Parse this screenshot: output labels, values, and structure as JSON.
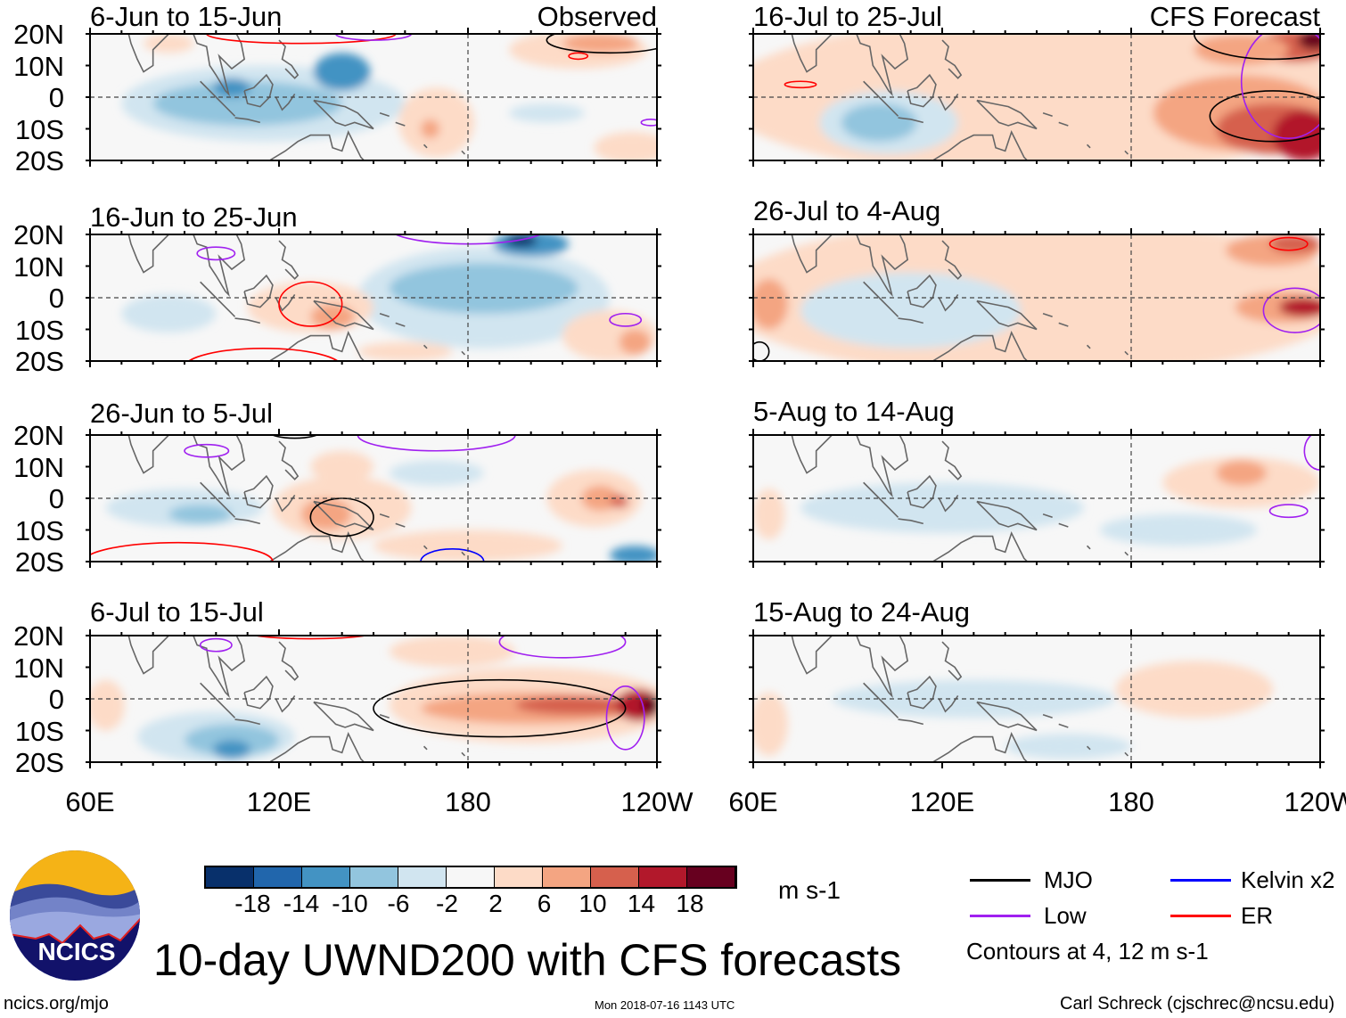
{
  "panels": [
    {
      "title": "6-Jun to 15-Jun",
      "tag": "Observed"
    },
    {
      "title": "16-Jun to 25-Jun"
    },
    {
      "title": "26-Jun to 5-Jul"
    },
    {
      "title": "6-Jul to 15-Jul"
    },
    {
      "title": "16-Jul to 25-Jul",
      "tag": "CFS Forecast"
    },
    {
      "title": "26-Jul to 4-Aug"
    },
    {
      "title": "5-Aug to 14-Aug"
    },
    {
      "title": "15-Aug to 24-Aug"
    }
  ],
  "lat_labels": [
    "20N",
    "10N",
    "0",
    "10S",
    "20S"
  ],
  "lon_labels": [
    "60E",
    "120E",
    "180",
    "120W"
  ],
  "colorbar": {
    "colors": [
      "#08306b",
      "#2166ac",
      "#4393c3",
      "#92c5de",
      "#d1e5f0",
      "#f7f7f7",
      "#fddbc7",
      "#f4a582",
      "#d6604d",
      "#b2182b",
      "#67001f"
    ],
    "labels": [
      "-18",
      "-14",
      "-10",
      "-6",
      "-2",
      "2",
      "6",
      "10",
      "14",
      "18"
    ],
    "units": "m s-1"
  },
  "legend": {
    "items": [
      {
        "label": "MJO",
        "color": "#000000"
      },
      {
        "label": "Kelvin x2",
        "color": "#0000ff"
      },
      {
        "label": "Low",
        "color": "#a020f0"
      },
      {
        "label": "ER",
        "color": "#ff0000"
      }
    ],
    "note": "Contours at 4, 12 m s-1"
  },
  "title": "10-day UWND200 with CFS forecasts",
  "logo_text": "NCICS",
  "footer": {
    "url": "ncics.org/mjo",
    "timestamp": "Mon 2018-07-16 1143 UTC",
    "credit": "Carl Schreck (cjschrec@ncsu.edu)"
  }
}
